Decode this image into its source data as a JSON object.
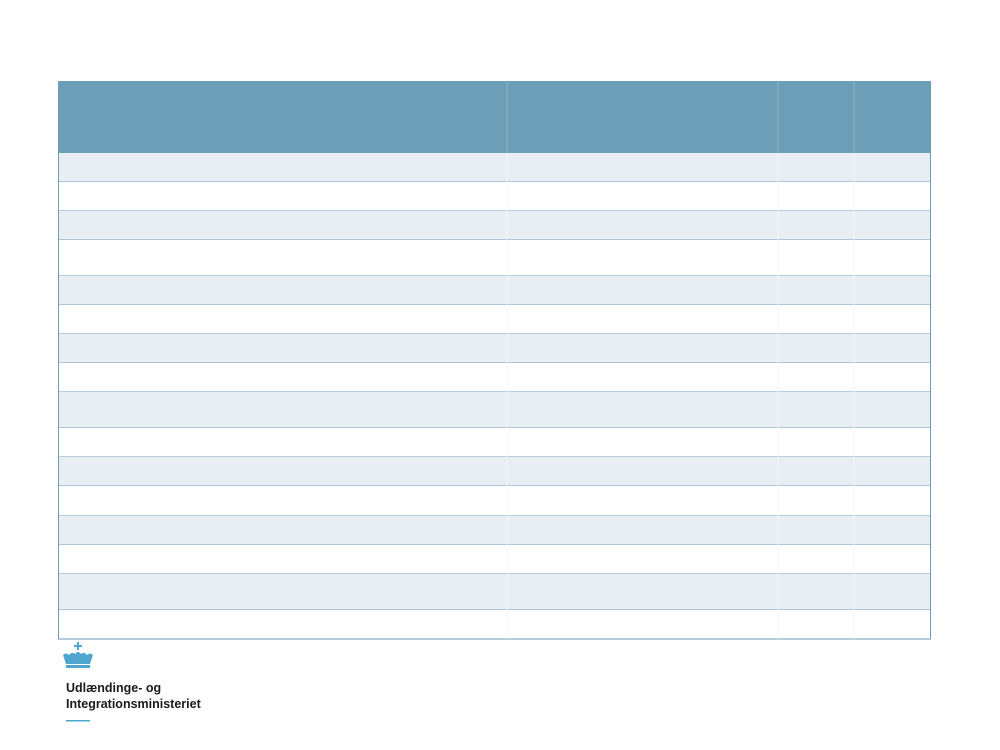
{
  "logo": {
    "lines": [
      "Udlændinge- og",
      "Integrationsministeriet"
    ]
  }
}
